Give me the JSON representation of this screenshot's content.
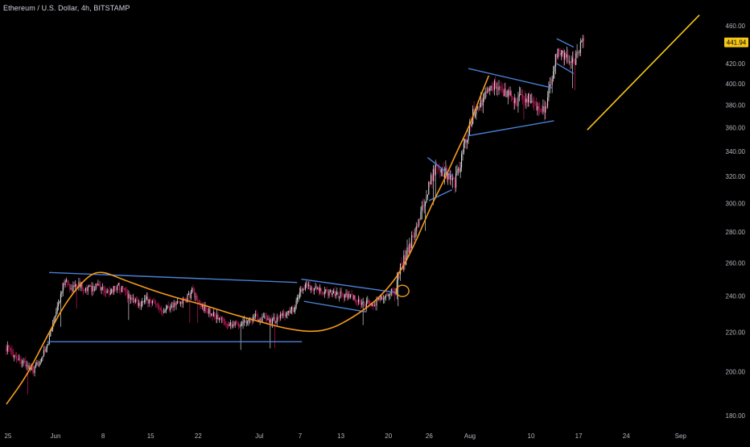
{
  "header": {
    "title": "Ethereum / U.S. Dollar, 4h, BITSTAMP"
  },
  "price_label": "441.94",
  "colors": {
    "background": "#000000",
    "axis_text": "#b2b5be",
    "candle_up": "#d6d6d6",
    "candle_down": "#c2185b",
    "trendline": "#4a7fd4",
    "curve": "#f59b1c",
    "projection": "#f5c518",
    "price_tag_bg": "#f5c518",
    "price_tag_text": "#000000"
  },
  "chart_data": {
    "type": "candlestick",
    "title": "Ethereum / U.S. Dollar, 4h, BITSTAMP",
    "x_axis": {
      "tick_labels": [
        "25",
        "Jun",
        "8",
        "15",
        "22",
        "Jul",
        "7",
        "13",
        "20",
        "26",
        "Aug",
        "10",
        "17",
        "24",
        "Sep"
      ],
      "tick_days": [
        -7,
        0,
        7,
        14,
        21,
        30,
        36,
        42,
        49,
        55,
        61,
        70,
        77,
        84,
        92
      ]
    },
    "y_axis": {
      "scale": "log",
      "range": [
        176,
        468
      ],
      "tick_labels": [
        "180.00",
        "200.00",
        "220.00",
        "240.00",
        "260.00",
        "280.00",
        "300.00",
        "320.00",
        "340.00",
        "360.00",
        "380.00",
        "400.00",
        "420.00",
        "440.00",
        "460.00"
      ],
      "tick_values": [
        180,
        200,
        220,
        240,
        260,
        280,
        300,
        320,
        340,
        360,
        380,
        400,
        420,
        440,
        460
      ]
    },
    "last_price": 441.94,
    "price_path": [
      [
        -7,
        212
      ],
      [
        -5,
        206
      ],
      [
        -3,
        200
      ],
      [
        -1,
        212
      ],
      [
        0,
        228
      ],
      [
        1,
        240
      ],
      [
        1.6,
        250
      ],
      [
        2.5,
        244
      ],
      [
        3.5,
        247
      ],
      [
        5,
        244
      ],
      [
        6.5,
        246
      ],
      [
        8,
        242
      ],
      [
        9.5,
        246
      ],
      [
        11,
        240
      ],
      [
        12.5,
        236
      ],
      [
        14,
        238
      ],
      [
        15.5,
        232
      ],
      [
        17,
        234
      ],
      [
        18.5,
        236
      ],
      [
        19.8,
        239
      ],
      [
        20.4,
        244
      ],
      [
        21,
        236
      ],
      [
        22.5,
        232
      ],
      [
        24,
        228
      ],
      [
        25.5,
        225
      ],
      [
        27,
        224
      ],
      [
        28.5,
        227
      ],
      [
        30,
        228
      ],
      [
        31.5,
        226
      ],
      [
        33,
        227
      ],
      [
        34.5,
        231
      ],
      [
        35.5,
        234
      ],
      [
        36.2,
        243
      ],
      [
        37,
        246
      ],
      [
        38,
        245
      ],
      [
        39.5,
        242
      ],
      [
        41,
        242
      ],
      [
        42.5,
        241
      ],
      [
        44,
        239
      ],
      [
        45.5,
        235
      ],
      [
        47,
        236
      ],
      [
        48.5,
        239
      ],
      [
        49.5,
        242
      ],
      [
        50.3,
        244
      ],
      [
        51,
        256
      ],
      [
        51.8,
        264
      ],
      [
        52.5,
        272
      ],
      [
        53.2,
        282
      ],
      [
        54,
        292
      ],
      [
        54.8,
        305
      ],
      [
        55.5,
        318
      ],
      [
        56.2,
        328
      ],
      [
        57,
        324
      ],
      [
        58,
        322
      ],
      [
        59,
        316
      ],
      [
        59.6,
        324
      ],
      [
        60.3,
        342
      ],
      [
        61,
        356
      ],
      [
        61.7,
        372
      ],
      [
        62.3,
        376
      ],
      [
        63,
        382
      ],
      [
        64,
        394
      ],
      [
        65,
        398
      ],
      [
        66,
        392
      ],
      [
        67,
        388
      ],
      [
        68,
        384
      ],
      [
        69,
        388
      ],
      [
        70,
        386
      ],
      [
        71,
        378
      ],
      [
        71.8,
        372
      ],
      [
        72.5,
        382
      ],
      [
        73,
        396
      ],
      [
        73.6,
        418
      ],
      [
        74.2,
        432
      ],
      [
        75,
        428
      ],
      [
        75.8,
        424
      ],
      [
        76.5,
        420
      ],
      [
        77,
        432
      ],
      [
        77.5,
        438
      ],
      [
        78,
        442
      ]
    ],
    "trendlines": [
      {
        "points": [
          [
            -1,
            215
          ],
          [
            36.5,
            215
          ]
        ]
      },
      {
        "points": [
          [
            -0.7,
            254
          ],
          [
            35.8,
            248
          ]
        ]
      },
      {
        "points": [
          [
            36.4,
            250
          ],
          [
            50.5,
            242
          ]
        ]
      },
      {
        "points": [
          [
            36.8,
            237
          ],
          [
            46,
            231
          ]
        ]
      },
      {
        "points": [
          [
            55,
            335
          ],
          [
            58.6,
            320
          ]
        ]
      },
      {
        "points": [
          [
            55.2,
            302
          ],
          [
            58.6,
            310
          ]
        ]
      },
      {
        "points": [
          [
            61,
            415
          ],
          [
            73.4,
            396
          ]
        ]
      },
      {
        "points": [
          [
            61,
            353
          ],
          [
            73.6,
            366
          ]
        ]
      },
      {
        "points": [
          [
            74,
            446
          ],
          [
            76.5,
            437
          ]
        ]
      },
      {
        "points": [
          [
            74,
            420
          ],
          [
            76.5,
            410
          ]
        ]
      }
    ],
    "curve": [
      [
        -7,
        185
      ],
      [
        -4,
        198
      ],
      [
        -1,
        218
      ],
      [
        2,
        238
      ],
      [
        5,
        252
      ],
      [
        7,
        255
      ],
      [
        10,
        250
      ],
      [
        14,
        244
      ],
      [
        18,
        239
      ],
      [
        22,
        235
      ],
      [
        26,
        230
      ],
      [
        30,
        226
      ],
      [
        34,
        222
      ],
      [
        38,
        220
      ],
      [
        41,
        222
      ],
      [
        44,
        228
      ],
      [
        47,
        236
      ],
      [
        49.5,
        246
      ],
      [
        51.5,
        258
      ],
      [
        53.5,
        276
      ],
      [
        55.5,
        298
      ],
      [
        57.5,
        318
      ],
      [
        59.5,
        342
      ],
      [
        61.2,
        362
      ],
      [
        62.5,
        384
      ],
      [
        64,
        408
      ]
    ],
    "circle_marker": {
      "x": 51.3,
      "y": 243
    },
    "projection": [
      [
        78.5,
        358
      ],
      [
        95,
        472
      ]
    ]
  }
}
